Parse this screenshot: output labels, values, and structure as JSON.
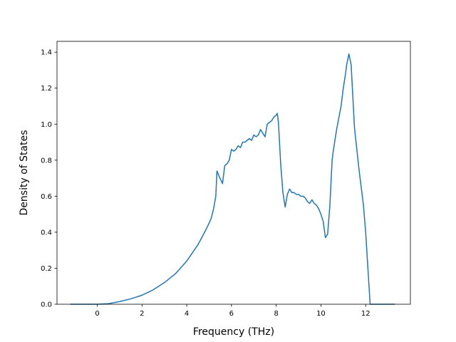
{
  "chart_data": {
    "type": "line",
    "title": "",
    "xlabel": "Frequency (THz)",
    "ylabel": "Density of States",
    "xlim": [
      -1.8,
      14.0
    ],
    "ylim": [
      0.0,
      1.46
    ],
    "xticks": [
      0,
      2,
      4,
      6,
      8,
      10,
      12
    ],
    "yticks": [
      0.0,
      0.2,
      0.4,
      0.6,
      0.8,
      1.0,
      1.2,
      1.4
    ],
    "xtick_labels": [
      "0",
      "2",
      "4",
      "6",
      "8",
      "10",
      "12"
    ],
    "ytick_labels": [
      "0.0",
      "0.2",
      "0.4",
      "0.6",
      "0.8",
      "1.0",
      "1.2",
      "1.4"
    ],
    "grid": false,
    "colors": {
      "line": "#1f77b4"
    },
    "series": [
      {
        "x": [
          -1.2,
          -0.6,
          0.0,
          0.5,
          1.0,
          1.5,
          2.0,
          2.5,
          3.0,
          3.5,
          4.0,
          4.5,
          4.8,
          5.0,
          5.1,
          5.2,
          5.3,
          5.35,
          5.45,
          5.6,
          5.7,
          5.8,
          5.9,
          6.0,
          6.1,
          6.2,
          6.3,
          6.4,
          6.5,
          6.6,
          6.7,
          6.8,
          6.9,
          7.0,
          7.1,
          7.2,
          7.3,
          7.4,
          7.5,
          7.6,
          7.7,
          7.8,
          7.9,
          8.0,
          8.05,
          8.1,
          8.2,
          8.3,
          8.4,
          8.5,
          8.6,
          8.7,
          8.8,
          8.9,
          9.0,
          9.1,
          9.2,
          9.3,
          9.4,
          9.5,
          9.6,
          9.7,
          9.8,
          9.9,
          10.0,
          10.1,
          10.2,
          10.3,
          10.4,
          10.5,
          10.55,
          10.7,
          10.9,
          11.0,
          11.1,
          11.15,
          11.25,
          11.35,
          11.5,
          11.7,
          11.9,
          12.0,
          12.05,
          12.2,
          13.3
        ],
        "y": [
          0.0,
          0.0,
          0.0,
          0.003,
          0.015,
          0.03,
          0.05,
          0.08,
          0.12,
          0.17,
          0.24,
          0.33,
          0.4,
          0.45,
          0.48,
          0.53,
          0.6,
          0.74,
          0.71,
          0.67,
          0.77,
          0.78,
          0.8,
          0.86,
          0.85,
          0.86,
          0.88,
          0.87,
          0.9,
          0.9,
          0.91,
          0.92,
          0.91,
          0.94,
          0.93,
          0.94,
          0.97,
          0.95,
          0.93,
          1.0,
          1.01,
          1.02,
          1.04,
          1.05,
          1.06,
          1.01,
          0.78,
          0.62,
          0.54,
          0.61,
          0.64,
          0.62,
          0.62,
          0.61,
          0.61,
          0.6,
          0.6,
          0.59,
          0.57,
          0.56,
          0.58,
          0.56,
          0.55,
          0.53,
          0.5,
          0.46,
          0.37,
          0.39,
          0.55,
          0.8,
          0.85,
          0.97,
          1.1,
          1.2,
          1.28,
          1.33,
          1.39,
          1.33,
          0.98,
          0.75,
          0.55,
          0.4,
          0.3,
          0.0,
          0.0
        ]
      }
    ]
  }
}
